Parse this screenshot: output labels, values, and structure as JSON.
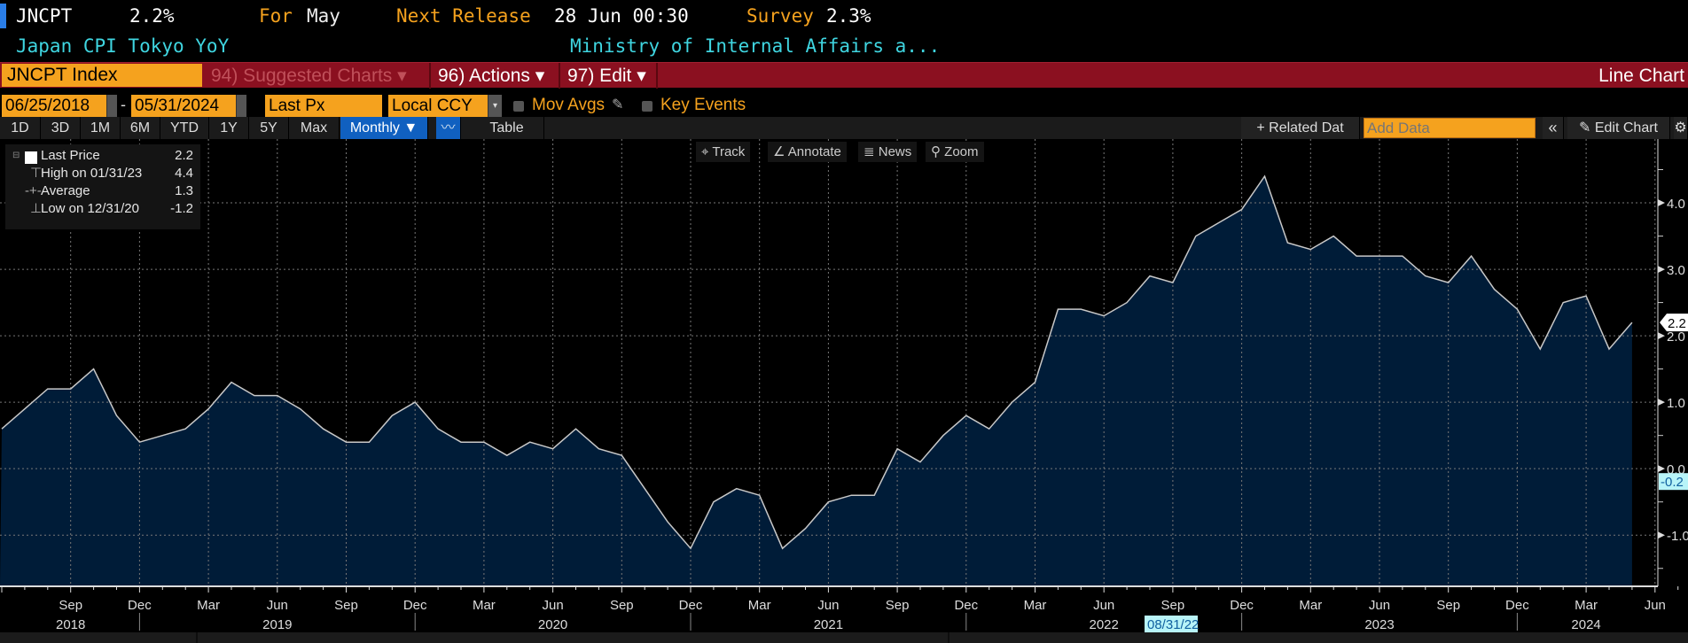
{
  "header": {
    "ticker": "JNCPT",
    "value": "2.2%",
    "for_label": "For",
    "for_value": "May",
    "next_release_label": "Next Release",
    "next_release_value": "28 Jun 00:30",
    "survey_label": "Survey",
    "survey_value": "2.3%",
    "name": "Japan CPI Tokyo YoY",
    "source": "Ministry of Internal Affairs a..."
  },
  "toolbar": {
    "security": "JNCPT Index",
    "suggested": "94) Suggested Charts ▾",
    "actions": "96) Actions ▾",
    "edit": "97) Edit ▾",
    "chart_type": "Line Chart"
  },
  "controls": {
    "start_date": "06/25/2018",
    "dash": "-",
    "end_date": "05/31/2024",
    "field": "Last Px",
    "currency": "Local CCY",
    "mov_avgs": "Mov Avgs",
    "key_events": "Key Events"
  },
  "periods": [
    "1D",
    "3D",
    "1M",
    "6M",
    "YTD",
    "1Y",
    "5Y",
    "Max"
  ],
  "frequency": "Monthly ▼",
  "table_label": "Table",
  "related_data": "+ Related Dat",
  "add_data_placeholder": "Add Data",
  "collapse": "«",
  "edit_chart": "Edit Chart",
  "chart_tools": {
    "track": "Track",
    "annotate": "Annotate",
    "news": "News",
    "zoom": "Zoom"
  },
  "legend": [
    {
      "label": "Last Price",
      "value": "2.2"
    },
    {
      "label": "High on 01/31/23",
      "value": "4.4"
    },
    {
      "label": "Average",
      "value": "1.3"
    },
    {
      "label": "Low on 12/31/20",
      "value": "-1.2"
    }
  ],
  "colors": {
    "accent": "#f5a21e",
    "toolbar_red": "#8b1020",
    "fill": "#001c38",
    "line": "#c8c8c8",
    "header_cyan": "#3fd5e0",
    "active_blue": "#1060c0"
  },
  "chart_data": {
    "type": "area",
    "x_start": "2018-06",
    "x_end": "2024-05",
    "frequency": "monthly",
    "values": [
      0.6,
      0.9,
      1.2,
      1.2,
      1.5,
      0.8,
      0.4,
      0.5,
      0.6,
      0.9,
      1.3,
      1.1,
      1.1,
      0.9,
      0.6,
      0.4,
      0.4,
      0.8,
      1.0,
      0.6,
      0.4,
      0.4,
      0.2,
      0.4,
      0.3,
      0.6,
      0.3,
      0.2,
      -0.3,
      -0.8,
      -1.2,
      -0.5,
      -0.3,
      -0.4,
      -1.2,
      -0.9,
      -0.5,
      -0.4,
      -0.4,
      0.3,
      0.1,
      0.5,
      0.8,
      0.6,
      1.0,
      1.3,
      2.4,
      2.4,
      2.3,
      2.5,
      2.9,
      2.8,
      3.5,
      3.7,
      3.9,
      4.4,
      3.4,
      3.3,
      3.5,
      3.2,
      3.2,
      3.2,
      2.9,
      2.8,
      3.2,
      2.7,
      2.4,
      1.8,
      2.5,
      2.6,
      1.8,
      2.2
    ],
    "ylim": [
      -1.77,
      4.96
    ],
    "y_ticks": [
      "4.0",
      "3.0",
      "2.0",
      "1.0",
      "0.0",
      "-1.0"
    ],
    "x_tick_labels": [
      {
        "label": "Sep",
        "month": "2018-09"
      },
      {
        "label": "Dec",
        "month": "2018-12"
      },
      {
        "label": "Mar",
        "month": "2019-03"
      },
      {
        "label": "Jun",
        "month": "2019-06"
      },
      {
        "label": "Sep",
        "month": "2019-09"
      },
      {
        "label": "Dec",
        "month": "2019-12"
      },
      {
        "label": "Mar",
        "month": "2020-03"
      },
      {
        "label": "Jun",
        "month": "2020-06"
      },
      {
        "label": "Sep",
        "month": "2020-09"
      },
      {
        "label": "Dec",
        "month": "2020-12"
      },
      {
        "label": "Mar",
        "month": "2021-03"
      },
      {
        "label": "Jun",
        "month": "2021-06"
      },
      {
        "label": "Sep",
        "month": "2021-09"
      },
      {
        "label": "Dec",
        "month": "2021-12"
      },
      {
        "label": "Mar",
        "month": "2022-03"
      },
      {
        "label": "Jun",
        "month": "2022-06"
      },
      {
        "label": "Sep",
        "month": "2022-09"
      },
      {
        "label": "Dec",
        "month": "2022-12"
      },
      {
        "label": "Mar",
        "month": "2023-03"
      },
      {
        "label": "Jun",
        "month": "2023-06"
      },
      {
        "label": "Sep",
        "month": "2023-09"
      },
      {
        "label": "Dec",
        "month": "2023-12"
      },
      {
        "label": "Mar",
        "month": "2024-03"
      },
      {
        "label": "Jun",
        "month": "2024-06"
      }
    ],
    "x_year_labels": [
      {
        "label": "2018",
        "month": "2018-09"
      },
      {
        "label": "2019",
        "month": "2019-06"
      },
      {
        "label": "2020",
        "month": "2020-06"
      },
      {
        "label": "2021",
        "month": "2021-06"
      },
      {
        "label": "2022",
        "month": "2022-06"
      },
      {
        "label": "2023",
        "month": "2023-06"
      },
      {
        "label": "2024",
        "month": "2024-03"
      }
    ],
    "last_value_label": "2.2",
    "cursor_value_label": "-0.2",
    "cursor_date_label": "08/31/22",
    "grid": true,
    "legend_position": "top-left"
  }
}
